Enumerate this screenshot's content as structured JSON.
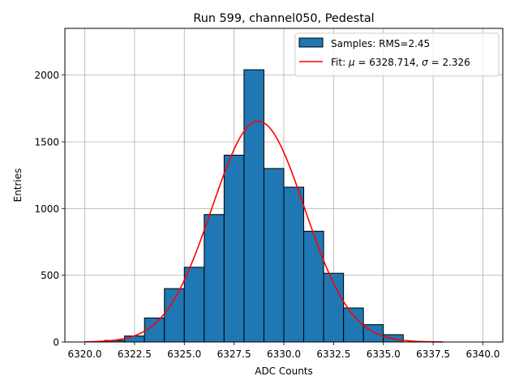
{
  "chart_data": {
    "type": "bar",
    "title": "Run 599, channel050, Pedestal",
    "xlabel": "ADC Counts",
    "ylabel": "Entries",
    "xlim": [
      6319.0,
      6341.0
    ],
    "ylim": [
      0,
      2350
    ],
    "grid": true,
    "legend_position": "top-right",
    "x_ticks": [
      6320.0,
      6322.5,
      6325.0,
      6327.5,
      6330.0,
      6332.5,
      6335.0,
      6337.5,
      6340.0
    ],
    "x_tick_labels": [
      "6320.0",
      "6322.5",
      "6325.0",
      "6327.5",
      "6330.0",
      "6332.5",
      "6335.0",
      "6337.5",
      "6340.0"
    ],
    "y_ticks": [
      0,
      500,
      1000,
      1500,
      2000
    ],
    "y_tick_labels": [
      "0",
      "500",
      "1000",
      "1500",
      "2000"
    ],
    "histogram": {
      "name": "Samples: RMS=2.45",
      "color": "#1f77b4",
      "edge_color": "#000000",
      "bin_edges": [
        6321.0,
        6322.0,
        6323.0,
        6324.0,
        6325.0,
        6326.0,
        6327.0,
        6328.0,
        6329.0,
        6330.0,
        6331.0,
        6332.0,
        6333.0,
        6334.0,
        6335.0,
        6336.0
      ],
      "counts": [
        12,
        45,
        180,
        400,
        560,
        955,
        1400,
        2040,
        1300,
        1160,
        830,
        515,
        255,
        130,
        55
      ]
    },
    "fit": {
      "name_prefix": "Fit: ",
      "mu_symbol": "μ",
      "sigma_symbol": "σ",
      "mu_text": " = 6328.714, ",
      "sigma_text": " = 2.326",
      "color": "#ff0000",
      "mu": 6328.714,
      "sigma": 2.326,
      "amplitude": 1655,
      "x_range": [
        6320.0,
        6338.0
      ]
    }
  }
}
